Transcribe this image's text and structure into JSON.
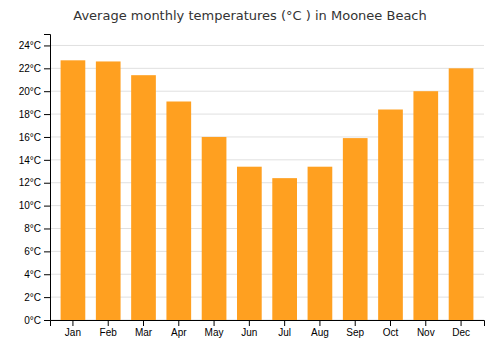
{
  "chart_data": {
    "type": "bar",
    "title": "Average monthly temperatures (°C ) in Moonee Beach",
    "categories": [
      "Jan",
      "Feb",
      "Mar",
      "Apr",
      "May",
      "Jun",
      "Jul",
      "Aug",
      "Sep",
      "Oct",
      "Nov",
      "Dec"
    ],
    "values": [
      22.7,
      22.6,
      21.4,
      19.1,
      16.0,
      13.4,
      12.4,
      13.4,
      15.9,
      18.4,
      20.0,
      22.0
    ],
    "color": "#FFA020",
    "ylim": [
      0,
      25
    ],
    "yticks": [
      {
        "value": 0,
        "label": "0°C"
      },
      {
        "value": 2,
        "label": "2°C"
      },
      {
        "value": 4,
        "label": "4°C"
      },
      {
        "value": 6,
        "label": "6°C"
      },
      {
        "value": 8,
        "label": "8°C"
      },
      {
        "value": 10,
        "label": "10°C"
      },
      {
        "value": 12,
        "label": "12°C"
      },
      {
        "value": 14,
        "label": "14°C"
      },
      {
        "value": 16,
        "label": "16°C"
      },
      {
        "value": 18,
        "label": "18°C"
      },
      {
        "value": 20,
        "label": "20°C"
      },
      {
        "value": 22,
        "label": "22°C"
      },
      {
        "value": 24,
        "label": "24°C"
      }
    ],
    "grid": true
  }
}
